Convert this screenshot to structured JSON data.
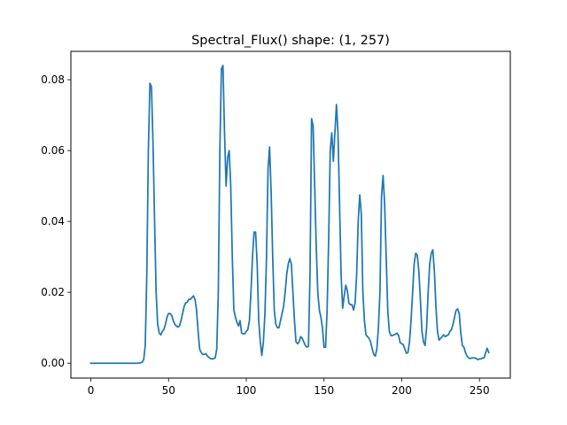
{
  "chart_data": {
    "type": "line",
    "title": "Spectral_Flux() shape: (1, 257)",
    "xlabel": "",
    "ylabel": "",
    "xlim": [
      -12.85,
      269.85
    ],
    "ylim": [
      -0.0042,
      0.088
    ],
    "x_ticks": [
      0,
      50,
      100,
      150,
      200,
      250
    ],
    "x_tick_labels": [
      "0",
      "50",
      "100",
      "150",
      "200",
      "250"
    ],
    "y_ticks": [
      0.0,
      0.02,
      0.04,
      0.06,
      0.08
    ],
    "y_tick_labels": [
      "0.00",
      "0.02",
      "0.04",
      "0.06",
      "0.08"
    ],
    "grid": false,
    "colors": {
      "line": "#1f77b4",
      "axes": "#000000",
      "background": "#ffffff"
    },
    "series": [
      {
        "points": [
          [
            0,
            0.0
          ],
          [
            10,
            0.0
          ],
          [
            20,
            0.0
          ],
          [
            30,
            0.0
          ],
          [
            32,
            0.0001
          ],
          [
            33,
            0.0003
          ],
          [
            34,
            0.001
          ],
          [
            35,
            0.005
          ],
          [
            36,
            0.025
          ],
          [
            37,
            0.06
          ],
          [
            38,
            0.079
          ],
          [
            39,
            0.078
          ],
          [
            40,
            0.062
          ],
          [
            41,
            0.04
          ],
          [
            42,
            0.02
          ],
          [
            43,
            0.011
          ],
          [
            44,
            0.0085
          ],
          [
            45,
            0.008
          ],
          [
            46,
            0.009
          ],
          [
            47,
            0.0095
          ],
          [
            48,
            0.011
          ],
          [
            49,
            0.013
          ],
          [
            50,
            0.014
          ],
          [
            51,
            0.014
          ],
          [
            52,
            0.0135
          ],
          [
            53,
            0.012
          ],
          [
            54,
            0.011
          ],
          [
            55,
            0.0105
          ],
          [
            56,
            0.0102
          ],
          [
            57,
            0.0105
          ],
          [
            58,
            0.012
          ],
          [
            59,
            0.014
          ],
          [
            60,
            0.016
          ],
          [
            61,
            0.017
          ],
          [
            62,
            0.0172
          ],
          [
            63,
            0.018
          ],
          [
            64,
            0.018
          ],
          [
            65,
            0.0185
          ],
          [
            66,
            0.019
          ],
          [
            67,
            0.018
          ],
          [
            68,
            0.015
          ],
          [
            69,
            0.009
          ],
          [
            70,
            0.004
          ],
          [
            71,
            0.003
          ],
          [
            72,
            0.0025
          ],
          [
            73,
            0.0025
          ],
          [
            74,
            0.0027
          ],
          [
            75,
            0.002
          ],
          [
            76,
            0.0016
          ],
          [
            77,
            0.0013
          ],
          [
            78,
            0.0012
          ],
          [
            79,
            0.0013
          ],
          [
            80,
            0.0015
          ],
          [
            81,
            0.004
          ],
          [
            82,
            0.02
          ],
          [
            83,
            0.06
          ],
          [
            84,
            0.083
          ],
          [
            85,
            0.084
          ],
          [
            86,
            0.065
          ],
          [
            87,
            0.05
          ],
          [
            88,
            0.058
          ],
          [
            89,
            0.06
          ],
          [
            90,
            0.05
          ],
          [
            91,
            0.03
          ],
          [
            92,
            0.015
          ],
          [
            93,
            0.013
          ],
          [
            94,
            0.0115
          ],
          [
            95,
            0.0105
          ],
          [
            96,
            0.012
          ],
          [
            97,
            0.0085
          ],
          [
            98,
            0.0083
          ],
          [
            99,
            0.0083
          ],
          [
            100,
            0.009
          ],
          [
            101,
            0.0095
          ],
          [
            102,
            0.012
          ],
          [
            103,
            0.02
          ],
          [
            104,
            0.03
          ],
          [
            105,
            0.037
          ],
          [
            106,
            0.037
          ],
          [
            107,
            0.028
          ],
          [
            108,
            0.012
          ],
          [
            109,
            0.006
          ],
          [
            110,
            0.0022
          ],
          [
            111,
            0.006
          ],
          [
            112,
            0.014
          ],
          [
            113,
            0.03
          ],
          [
            114,
            0.055
          ],
          [
            115,
            0.061
          ],
          [
            116,
            0.048
          ],
          [
            117,
            0.03
          ],
          [
            118,
            0.015
          ],
          [
            119,
            0.011
          ],
          [
            120,
            0.01
          ],
          [
            121,
            0.01
          ],
          [
            122,
            0.012
          ],
          [
            123,
            0.014
          ],
          [
            124,
            0.016
          ],
          [
            125,
            0.02
          ],
          [
            126,
            0.025
          ],
          [
            127,
            0.028
          ],
          [
            128,
            0.0295
          ],
          [
            129,
            0.028
          ],
          [
            130,
            0.02
          ],
          [
            131,
            0.012
          ],
          [
            132,
            0.006
          ],
          [
            133,
            0.0055
          ],
          [
            134,
            0.006
          ],
          [
            135,
            0.0075
          ],
          [
            136,
            0.007
          ],
          [
            137,
            0.006
          ],
          [
            138,
            0.005
          ],
          [
            139,
            0.0045
          ],
          [
            140,
            0.0048
          ],
          [
            141,
            0.025
          ],
          [
            142,
            0.069
          ],
          [
            143,
            0.067
          ],
          [
            144,
            0.05
          ],
          [
            145,
            0.033
          ],
          [
            146,
            0.02
          ],
          [
            147,
            0.015
          ],
          [
            148,
            0.013
          ],
          [
            149,
            0.01
          ],
          [
            150,
            0.0045
          ],
          [
            151,
            0.0045
          ],
          [
            152,
            0.015
          ],
          [
            153,
            0.035
          ],
          [
            154,
            0.06
          ],
          [
            155,
            0.065
          ],
          [
            156,
            0.057
          ],
          [
            157,
            0.065
          ],
          [
            158,
            0.073
          ],
          [
            159,
            0.065
          ],
          [
            160,
            0.045
          ],
          [
            161,
            0.025
          ],
          [
            162,
            0.0155
          ],
          [
            163,
            0.019
          ],
          [
            164,
            0.022
          ],
          [
            165,
            0.0205
          ],
          [
            166,
            0.017
          ],
          [
            167,
            0.0165
          ],
          [
            168,
            0.0165
          ],
          [
            169,
            0.015
          ],
          [
            170,
            0.017
          ],
          [
            171,
            0.025
          ],
          [
            172,
            0.04
          ],
          [
            173,
            0.0475
          ],
          [
            174,
            0.042
          ],
          [
            175,
            0.02
          ],
          [
            176,
            0.012
          ],
          [
            177,
            0.008
          ],
          [
            178,
            0.0075
          ],
          [
            179,
            0.007
          ],
          [
            180,
            0.006
          ],
          [
            181,
            0.004
          ],
          [
            182,
            0.0025
          ],
          [
            183,
            0.002
          ],
          [
            184,
            0.004
          ],
          [
            185,
            0.01
          ],
          [
            186,
            0.02
          ],
          [
            187,
            0.047
          ],
          [
            188,
            0.053
          ],
          [
            189,
            0.045
          ],
          [
            190,
            0.03
          ],
          [
            191,
            0.015
          ],
          [
            192,
            0.009
          ],
          [
            193,
            0.0078
          ],
          [
            194,
            0.0078
          ],
          [
            195,
            0.008
          ],
          [
            196,
            0.0082
          ],
          [
            197,
            0.0085
          ],
          [
            198,
            0.0078
          ],
          [
            199,
            0.0058
          ],
          [
            200,
            0.0055
          ],
          [
            201,
            0.0052
          ],
          [
            202,
            0.004
          ],
          [
            203,
            0.0028
          ],
          [
            204,
            0.003
          ],
          [
            205,
            0.006
          ],
          [
            206,
            0.012
          ],
          [
            207,
            0.02
          ],
          [
            208,
            0.028
          ],
          [
            209,
            0.031
          ],
          [
            210,
            0.0305
          ],
          [
            211,
            0.026
          ],
          [
            212,
            0.018
          ],
          [
            213,
            0.009
          ],
          [
            214,
            0.006
          ],
          [
            215,
            0.005
          ],
          [
            216,
            0.01
          ],
          [
            217,
            0.02
          ],
          [
            218,
            0.028
          ],
          [
            219,
            0.031
          ],
          [
            220,
            0.032
          ],
          [
            221,
            0.026
          ],
          [
            222,
            0.016
          ],
          [
            223,
            0.009
          ],
          [
            224,
            0.0065
          ],
          [
            225,
            0.007
          ],
          [
            226,
            0.0075
          ],
          [
            227,
            0.008
          ],
          [
            228,
            0.0075
          ],
          [
            229,
            0.0078
          ],
          [
            230,
            0.008
          ],
          [
            231,
            0.009
          ],
          [
            232,
            0.0095
          ],
          [
            233,
            0.011
          ],
          [
            234,
            0.013
          ],
          [
            235,
            0.015
          ],
          [
            236,
            0.0153
          ],
          [
            237,
            0.014
          ],
          [
            238,
            0.0085
          ],
          [
            239,
            0.005
          ],
          [
            240,
            0.0045
          ],
          [
            241,
            0.003
          ],
          [
            242,
            0.002
          ],
          [
            243,
            0.0015
          ],
          [
            244,
            0.0013
          ],
          [
            245,
            0.0015
          ],
          [
            246,
            0.0015
          ],
          [
            247,
            0.0015
          ],
          [
            248,
            0.0013
          ],
          [
            249,
            0.001
          ],
          [
            250,
            0.0012
          ],
          [
            251,
            0.0012
          ],
          [
            252,
            0.0015
          ],
          [
            253,
            0.0015
          ],
          [
            254,
            0.003
          ],
          [
            255,
            0.0042
          ],
          [
            256,
            0.003
          ]
        ]
      }
    ]
  }
}
